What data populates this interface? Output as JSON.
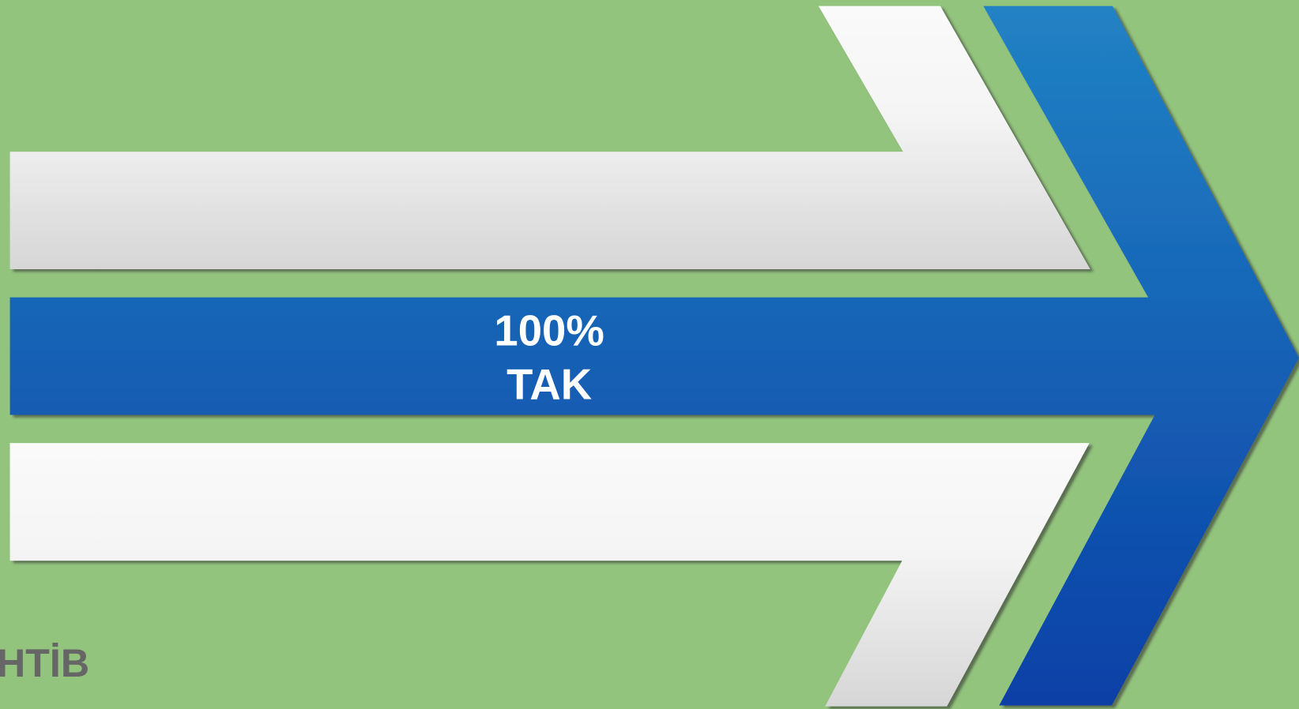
{
  "arrow": {
    "value": "100%",
    "label": "TAK"
  },
  "footer": {
    "logo": "HTİB"
  }
}
